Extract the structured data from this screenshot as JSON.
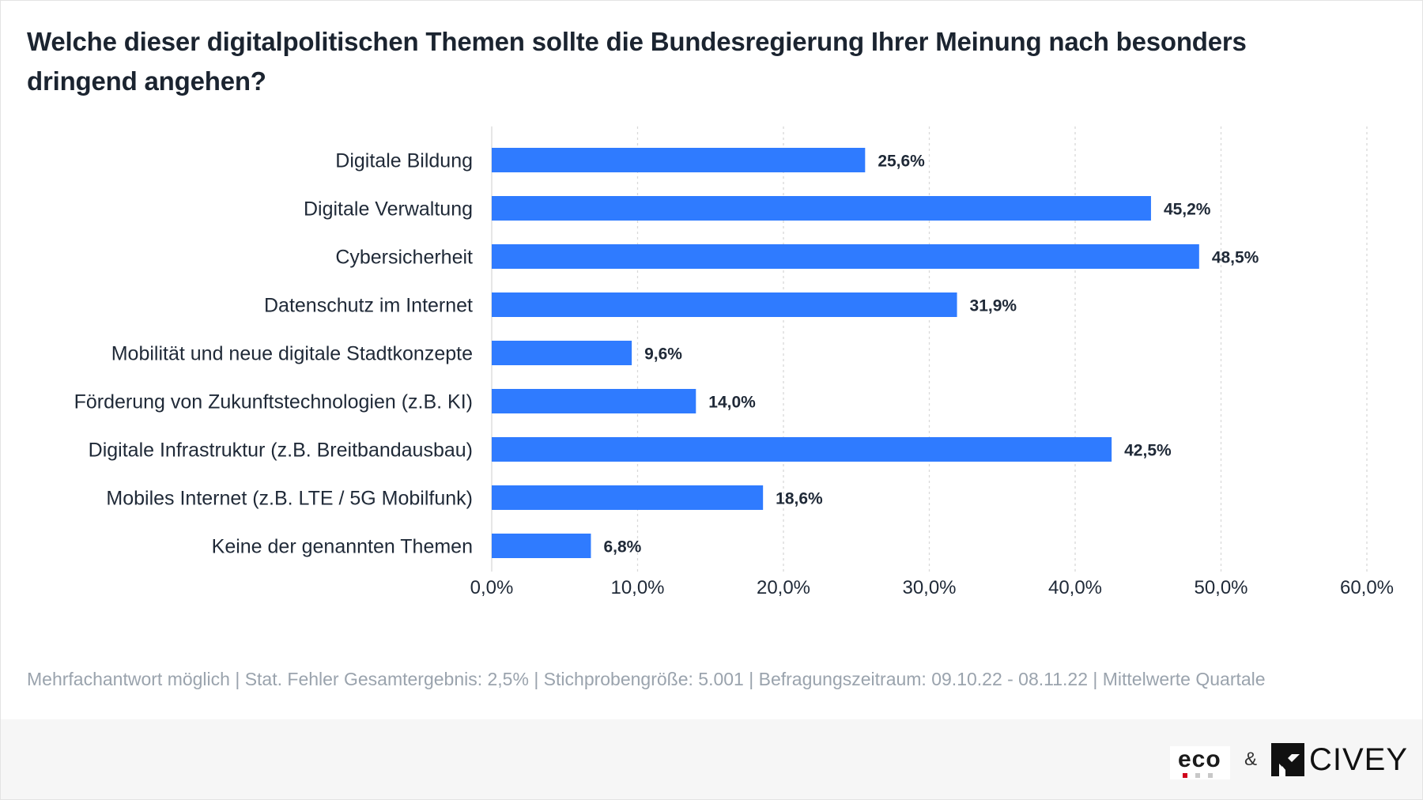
{
  "title": "Welche dieser digitalpolitischen Themen sollte die Bundesregierung Ihrer Meinung nach besonders dringend angehen?",
  "footnote": "Mehrfachantwort möglich | Stat. Fehler Gesamtergebnis: 2,5% | Stichprobengröße: 5.001 | Befragungszeitraum: 09.10.22 - 08.11.22 | Mittelwerte Quartale",
  "footer": {
    "eco_logo_text": "eco",
    "ampersand": "&",
    "civey_logo_text": "CIVEY"
  },
  "colors": {
    "bar": "#2f7bff",
    "grid": "#d9d9d9",
    "text": "#1f2937",
    "footnote": "#9aa3ad"
  },
  "chart_data": {
    "type": "bar",
    "orientation": "horizontal",
    "title": "Welche dieser digitalpolitischen Themen sollte die Bundesregierung Ihrer Meinung nach besonders dringend angehen?",
    "categories": [
      "Digitale Bildung",
      "Digitale Verwaltung",
      "Cybersicherheit",
      "Datenschutz im Internet",
      "Mobilität und neue digitale Stadtkonzepte",
      "Förderung von Zukunftstechnologien (z.B. KI)",
      "Digitale Infrastruktur (z.B. Breitbandausbau)",
      "Mobiles Internet (z.B. LTE / 5G Mobilfunk)",
      "Keine der genannten Themen"
    ],
    "values": [
      25.6,
      45.2,
      48.5,
      31.9,
      9.6,
      14.0,
      42.5,
      18.6,
      6.8
    ],
    "value_labels": [
      "25,6%",
      "45,2%",
      "48,5%",
      "31,9%",
      "9,6%",
      "14,0%",
      "42,5%",
      "18,6%",
      "6,8%"
    ],
    "xlim": [
      0,
      60
    ],
    "x_ticks": [
      0,
      10,
      20,
      30,
      40,
      50,
      60
    ],
    "x_tick_labels": [
      "0,0%",
      "10,0%",
      "20,0%",
      "30,0%",
      "40,0%",
      "50,0%",
      "60,0%"
    ],
    "grid": "vertical dashed",
    "legend": "none"
  }
}
